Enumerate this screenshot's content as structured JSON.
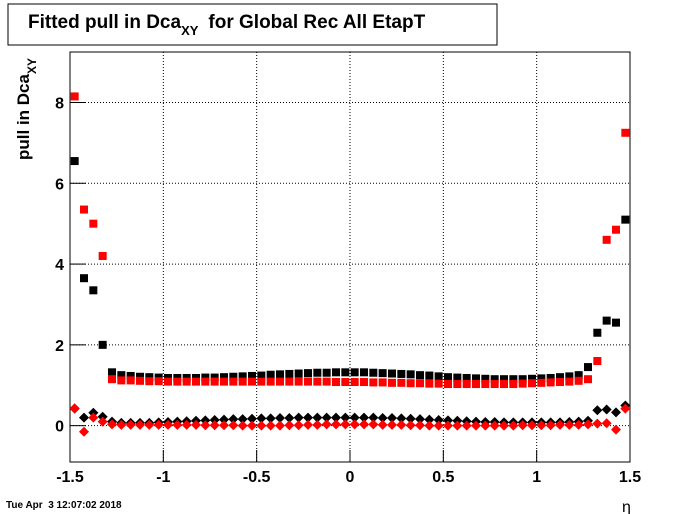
{
  "chart_data": {
    "type": "scatter",
    "title": {
      "main": "Fitted pull in Dca",
      "sub": "XY",
      "rest": "for Global Rec All EtapT"
    },
    "y_label": {
      "main": "pull in Dca",
      "sub": "XY"
    },
    "x_label": "η",
    "timestamp": "Tue Apr  3 12:07:02 2018",
    "xlim": [
      -1.5,
      1.5
    ],
    "ylim": [
      -0.9,
      9.25
    ],
    "xticks": [
      -1.5,
      -1,
      -0.5,
      0,
      0.5,
      1,
      1.5
    ],
    "yticks": [
      0,
      2,
      4,
      6,
      8
    ],
    "grid": true,
    "x": [
      -1.475,
      -1.425,
      -1.375,
      -1.325,
      -1.275,
      -1.225,
      -1.175,
      -1.125,
      -1.075,
      -1.025,
      -0.975,
      -0.925,
      -0.875,
      -0.825,
      -0.775,
      -0.725,
      -0.675,
      -0.625,
      -0.575,
      -0.525,
      -0.475,
      -0.425,
      -0.375,
      -0.325,
      -0.275,
      -0.225,
      -0.175,
      -0.125,
      -0.075,
      -0.025,
      0.025,
      0.075,
      0.125,
      0.175,
      0.225,
      0.275,
      0.325,
      0.375,
      0.425,
      0.475,
      0.525,
      0.575,
      0.625,
      0.675,
      0.725,
      0.775,
      0.825,
      0.875,
      0.925,
      0.975,
      1.025,
      1.075,
      1.125,
      1.175,
      1.225,
      1.275,
      1.325,
      1.375,
      1.425,
      1.475
    ],
    "series": [
      {
        "color": "#000000",
        "marker": "square",
        "values": [
          6.55,
          3.65,
          3.35,
          2.0,
          1.32,
          1.25,
          1.23,
          1.21,
          1.2,
          1.19,
          1.18,
          1.18,
          1.18,
          1.18,
          1.19,
          1.19,
          1.2,
          1.21,
          1.22,
          1.23,
          1.24,
          1.26,
          1.27,
          1.28,
          1.29,
          1.3,
          1.31,
          1.31,
          1.32,
          1.32,
          1.32,
          1.32,
          1.31,
          1.3,
          1.29,
          1.28,
          1.27,
          1.25,
          1.24,
          1.22,
          1.2,
          1.19,
          1.18,
          1.17,
          1.16,
          1.15,
          1.15,
          1.15,
          1.15,
          1.16,
          1.17,
          1.18,
          1.2,
          1.22,
          1.25,
          1.45,
          2.3,
          2.6,
          2.55,
          5.1
        ]
      },
      {
        "color": "#ff0000",
        "marker": "square",
        "values": [
          8.15,
          5.35,
          5.0,
          4.2,
          1.15,
          1.12,
          1.12,
          1.11,
          1.1,
          1.1,
          1.09,
          1.09,
          1.09,
          1.09,
          1.09,
          1.09,
          1.09,
          1.09,
          1.09,
          1.09,
          1.09,
          1.09,
          1.09,
          1.09,
          1.09,
          1.09,
          1.09,
          1.09,
          1.08,
          1.08,
          1.08,
          1.08,
          1.07,
          1.07,
          1.06,
          1.06,
          1.05,
          1.05,
          1.04,
          1.04,
          1.03,
          1.03,
          1.03,
          1.03,
          1.03,
          1.03,
          1.03,
          1.03,
          1.04,
          1.05,
          1.06,
          1.07,
          1.08,
          1.09,
          1.11,
          1.15,
          1.6,
          4.6,
          4.85,
          7.25
        ]
      },
      {
        "color": "#000000",
        "marker": "diamond",
        "values": [
          0.42,
          0.2,
          0.32,
          0.22,
          0.1,
          0.07,
          0.07,
          0.07,
          0.07,
          0.08,
          0.09,
          0.1,
          0.11,
          0.12,
          0.13,
          0.14,
          0.15,
          0.16,
          0.16,
          0.17,
          0.18,
          0.18,
          0.19,
          0.19,
          0.2,
          0.2,
          0.2,
          0.2,
          0.2,
          0.2,
          0.2,
          0.2,
          0.2,
          0.19,
          0.19,
          0.18,
          0.17,
          0.16,
          0.15,
          0.14,
          0.13,
          0.12,
          0.11,
          0.1,
          0.09,
          0.09,
          0.08,
          0.08,
          0.08,
          0.08,
          0.08,
          0.08,
          0.08,
          0.09,
          0.1,
          0.12,
          0.38,
          0.4,
          0.33,
          0.5
        ]
      },
      {
        "color": "#ff0000",
        "marker": "diamond",
        "values": [
          0.43,
          -0.15,
          0.2,
          0.1,
          0.03,
          0.02,
          0.02,
          0.02,
          0.02,
          0.02,
          0.02,
          0.02,
          0.02,
          0.02,
          0.01,
          0.01,
          0.01,
          0.01,
          0.0,
          0.0,
          0.0,
          0.0,
          0.0,
          0.01,
          0.01,
          0.02,
          0.02,
          0.03,
          0.03,
          0.03,
          0.03,
          0.03,
          0.03,
          0.02,
          0.02,
          0.02,
          0.01,
          0.01,
          0.0,
          0.0,
          0.0,
          0.0,
          0.0,
          0.0,
          0.0,
          0.0,
          0.0,
          0.0,
          0.01,
          0.01,
          0.01,
          0.01,
          0.02,
          0.02,
          0.02,
          0.03,
          0.05,
          0.06,
          -0.1,
          0.42
        ]
      }
    ]
  }
}
